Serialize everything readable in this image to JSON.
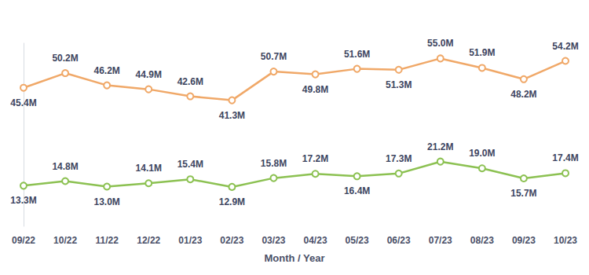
{
  "chart_data": {
    "type": "line",
    "x_label": "Month / Year",
    "categories": [
      "09/22",
      "10/22",
      "11/22",
      "12/22",
      "01/23",
      "02/23",
      "03/23",
      "04/23",
      "05/23",
      "06/23",
      "07/23",
      "08/23",
      "09/23",
      "10/23"
    ],
    "ylim": [
      0,
      60
    ],
    "grid": false,
    "tick_labels": "x",
    "data_labels": true,
    "marker": "circle",
    "line_style": "solid",
    "series": [
      {
        "color": "#f0a868",
        "values": [
          45.4,
          50.2,
          46.2,
          44.9,
          42.6,
          41.3,
          50.7,
          49.8,
          51.6,
          51.3,
          55.0,
          51.9,
          48.2,
          54.2
        ],
        "value_labels": [
          "45.4M",
          "50.2M",
          "46.2M",
          "44.9M",
          "42.6M",
          "41.3M",
          "50.7M",
          "49.8M",
          "51.6M",
          "51.3M",
          "55.0M",
          "51.9M",
          "48.2M",
          "54.2M"
        ]
      },
      {
        "color": "#8cc152",
        "values": [
          13.3,
          14.8,
          13.0,
          14.1,
          15.4,
          12.9,
          15.8,
          17.2,
          16.4,
          17.3,
          21.2,
          19.0,
          15.7,
          17.4
        ],
        "value_labels": [
          "13.3M",
          "14.8M",
          "13.0M",
          "14.1M",
          "15.4M",
          "12.9M",
          "15.8M",
          "17.2M",
          "16.4M",
          "17.3M",
          "21.2M",
          "19.0M",
          "15.7M",
          "17.4M"
        ]
      }
    ]
  }
}
